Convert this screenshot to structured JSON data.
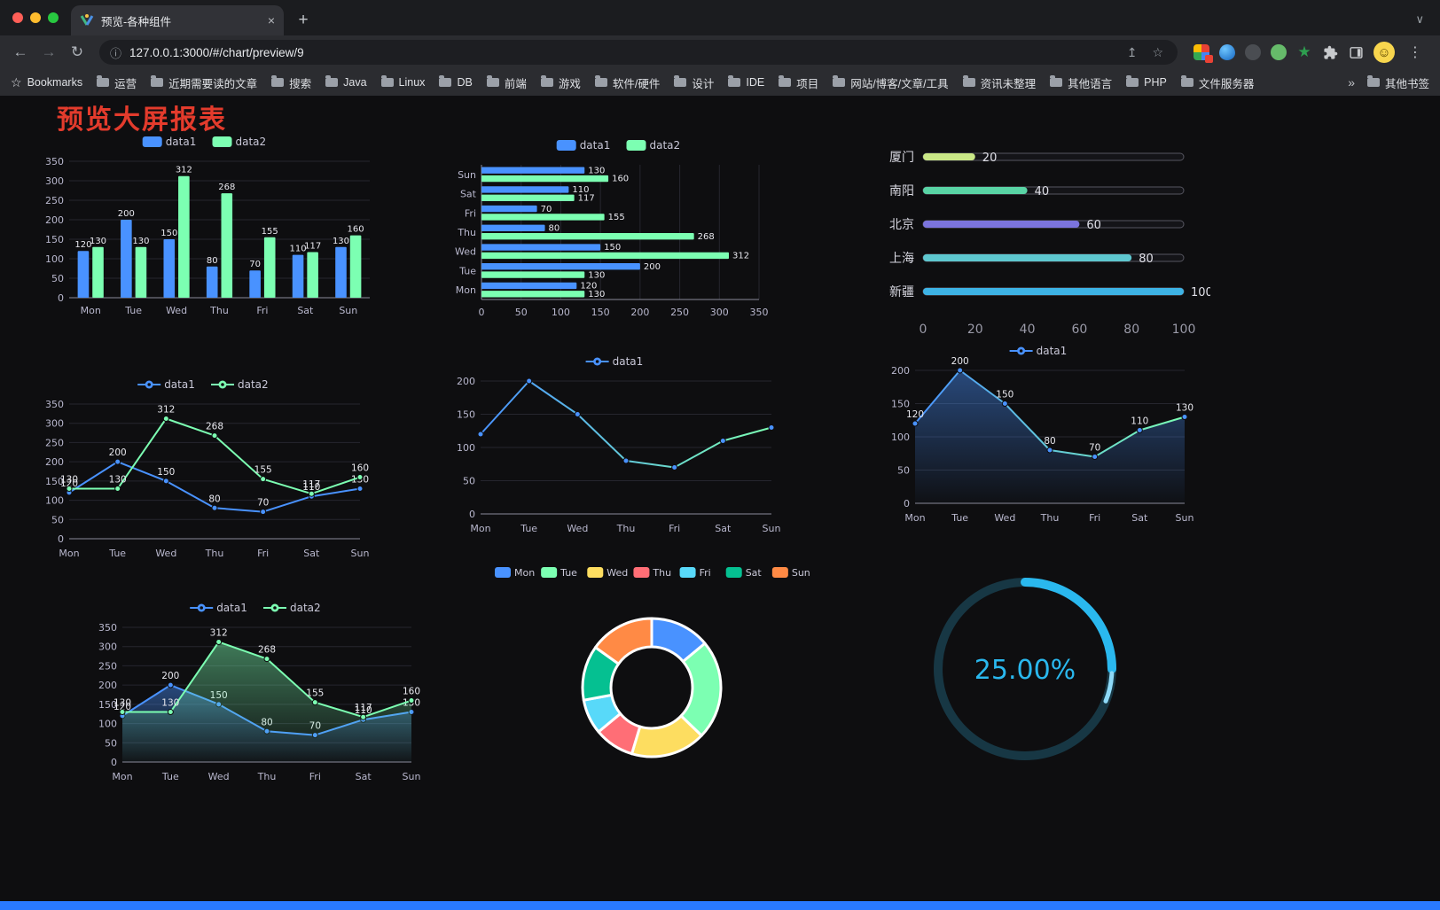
{
  "browser": {
    "tab_title": "预览-各种组件",
    "url": "127.0.0.1:3000/#/chart/preview/9",
    "bookmarks_label": "Bookmarks",
    "bookmarks": [
      "运营",
      "近期需要读的文章",
      "搜索",
      "Java",
      "Linux",
      "DB",
      "前端",
      "游戏",
      "软件/硬件",
      "设计",
      "IDE",
      "项目",
      "网站/博客/文章/工具",
      "资讯未整理",
      "其他语言",
      "PHP",
      "文件服务器"
    ],
    "other_bookmarks": "其他书签",
    "icons": {
      "back": "←",
      "forward": "→",
      "reload": "↻",
      "info": "ⓘ",
      "share": "↥",
      "star": "☆",
      "close": "×",
      "new_tab": "+",
      "menu": "⋮",
      "chevron_down": "∨",
      "chevron_right": "»",
      "smiley": "☺",
      "ext_star": "★"
    }
  },
  "page": {
    "title": "预览大屏报表",
    "title_color": "#e33b2c",
    "background": "#0e0e10",
    "footer_color": "#2979ff"
  },
  "charts": [
    {
      "id": "grouped-bar",
      "type": "bar",
      "categories": [
        "Mon",
        "Tue",
        "Wed",
        "Thu",
        "Fri",
        "Sat",
        "Sun"
      ],
      "series": [
        {
          "name": "data1",
          "color": "#4992ff",
          "values": [
            120,
            200,
            150,
            80,
            70,
            110,
            130
          ]
        },
        {
          "name": "data2",
          "color": "#7cffb2",
          "values": [
            130,
            130,
            312,
            268,
            155,
            117,
            160
          ]
        }
      ],
      "ymax": 350,
      "yticks": [
        0,
        50,
        100,
        150,
        200,
        250,
        300,
        350
      ],
      "show_labels": true
    },
    {
      "id": "horizontal-bar",
      "type": "hbar",
      "categories": [
        "Mon",
        "Tue",
        "Wed",
        "Thu",
        "Fri",
        "Sat",
        "Sun"
      ],
      "series": [
        {
          "name": "data1",
          "color": "#4992ff",
          "values": [
            120,
            200,
            150,
            80,
            70,
            110,
            130
          ]
        },
        {
          "name": "data2",
          "color": "#7cffb2",
          "values": [
            130,
            130,
            312,
            268,
            155,
            117,
            160
          ]
        }
      ],
      "xmax": 350,
      "xticks": [
        0,
        50,
        100,
        150,
        200,
        250,
        300,
        350
      ],
      "show_labels": true
    },
    {
      "id": "city-progress",
      "type": "progress",
      "max": 100,
      "xticks": [
        0,
        20,
        40,
        60,
        80,
        100
      ],
      "items": [
        {
          "label": "厦门",
          "value": 20,
          "color": "#c9e786"
        },
        {
          "label": "南阳",
          "value": 40,
          "color": "#59d4a5"
        },
        {
          "label": "北京",
          "value": 60,
          "color": "#7b74dd"
        },
        {
          "label": "上海",
          "value": 80,
          "color": "#5ec7cf"
        },
        {
          "label": "新疆",
          "value": 100,
          "color": "#3db3e5"
        }
      ]
    },
    {
      "id": "line-dual",
      "type": "line",
      "categories": [
        "Mon",
        "Tue",
        "Wed",
        "Thu",
        "Fri",
        "Sat",
        "Sun"
      ],
      "series": [
        {
          "name": "data1",
          "color": "#4992ff",
          "values": [
            120,
            200,
            150,
            80,
            70,
            110,
            130
          ],
          "labels": true
        },
        {
          "name": "data2",
          "color": "#7cffb2",
          "values": [
            130,
            130,
            312,
            268,
            155,
            117,
            160
          ],
          "labels": true
        }
      ],
      "ymax": 350,
      "yticks": [
        0,
        50,
        100,
        150,
        200,
        250,
        300,
        350
      ]
    },
    {
      "id": "line-gradient",
      "type": "line",
      "categories": [
        "Mon",
        "Tue",
        "Wed",
        "Thu",
        "Fri",
        "Sat",
        "Sun"
      ],
      "series": [
        {
          "name": "data1",
          "color": "#4992ff",
          "gradient": [
            "#4992ff",
            "#7cffb2"
          ],
          "values": [
            120,
            200,
            150,
            80,
            70,
            110,
            130
          ]
        }
      ],
      "ymax": 200,
      "yticks": [
        0,
        50,
        100,
        150,
        200
      ]
    },
    {
      "id": "line-area",
      "type": "line",
      "categories": [
        "Mon",
        "Tue",
        "Wed",
        "Thu",
        "Fri",
        "Sat",
        "Sun"
      ],
      "series": [
        {
          "name": "data1",
          "color": "#4992ff",
          "gradient": [
            "#4992ff",
            "#7cffb2"
          ],
          "area": true,
          "values": [
            120,
            200,
            150,
            80,
            70,
            110,
            130
          ],
          "labels": true
        }
      ],
      "ymax": 200,
      "yticks": [
        0,
        50,
        100,
        150,
        200
      ]
    },
    {
      "id": "line-dual-area",
      "type": "line",
      "categories": [
        "Mon",
        "Tue",
        "Wed",
        "Thu",
        "Fri",
        "Sat",
        "Sun"
      ],
      "series": [
        {
          "name": "data1",
          "color": "#4992ff",
          "area": true,
          "values": [
            120,
            200,
            150,
            80,
            70,
            110,
            130
          ],
          "labels": true
        },
        {
          "name": "data2",
          "color": "#7cffb2",
          "area": true,
          "values": [
            130,
            130,
            312,
            268,
            155,
            117,
            160
          ],
          "labels": true
        }
      ],
      "ymax": 350,
      "yticks": [
        0,
        50,
        100,
        150,
        200,
        250,
        300,
        350
      ]
    },
    {
      "id": "weekday-donut",
      "type": "donut",
      "labels": [
        "Mon",
        "Tue",
        "Wed",
        "Thu",
        "Fri",
        "Sat",
        "Sun"
      ],
      "values": [
        120,
        200,
        150,
        80,
        70,
        110,
        130
      ],
      "colors": [
        "#4992ff",
        "#7cffb2",
        "#fddd60",
        "#ff6e76",
        "#58d9f9",
        "#05c091",
        "#ff8a45"
      ]
    },
    {
      "id": "percent-gauge",
      "type": "gauge",
      "value": 25,
      "display": "25.00%",
      "color": "#2ab8ee",
      "tail": "#8ed9f7",
      "track": "#173744"
    }
  ]
}
